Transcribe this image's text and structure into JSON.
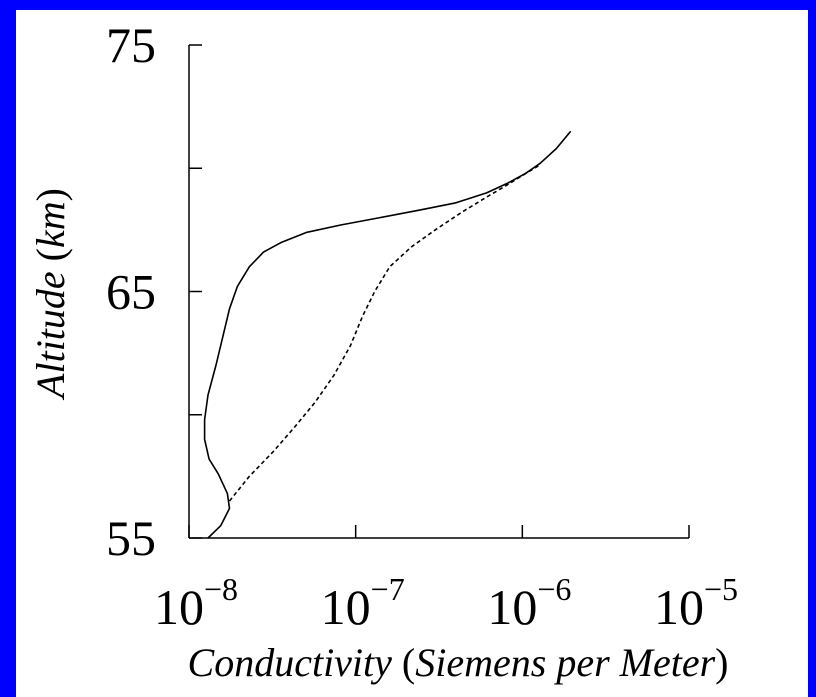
{
  "colors": {
    "frame": "#0000ff",
    "background": "#ffffff",
    "ink": "#000000"
  },
  "chart_data": {
    "type": "line",
    "title": "",
    "xlabel": {
      "italic_part": "Conductivity",
      "paren_part": "Siemens per Meter"
    },
    "ylabel": {
      "italic_part": "Altitude",
      "paren_part": "km"
    },
    "x_scale": "log",
    "xlim": [
      1e-08,
      1e-05
    ],
    "ylim": [
      55,
      75
    ],
    "x_ticks": [
      1e-08,
      1e-07,
      1e-06,
      1e-05
    ],
    "x_tick_labels": [
      {
        "base": "10",
        "exp": "−8"
      },
      {
        "base": "10",
        "exp": "−7"
      },
      {
        "base": "10",
        "exp": "−6"
      },
      {
        "base": "10",
        "exp": "−5"
      }
    ],
    "y_ticks": [
      55,
      60,
      65,
      70,
      75
    ],
    "y_tick_labels": [
      "55",
      "",
      "65",
      "",
      "75"
    ],
    "grid": false,
    "series": [
      {
        "style": "solid",
        "points": [
          [
            1.3e-08,
            55.0
          ],
          [
            1.55e-08,
            55.5
          ],
          [
            1.75e-08,
            56.2
          ],
          [
            1.7e-08,
            56.8
          ],
          [
            1.5e-08,
            57.6
          ],
          [
            1.32e-08,
            58.2
          ],
          [
            1.24e-08,
            59.0
          ],
          [
            1.24e-08,
            59.8
          ],
          [
            1.3e-08,
            60.8
          ],
          [
            1.45e-08,
            62.0
          ],
          [
            1.6e-08,
            63.2
          ],
          [
            1.75e-08,
            64.3
          ],
          [
            1.95e-08,
            65.2
          ],
          [
            2.3e-08,
            66.0
          ],
          [
            2.8e-08,
            66.6
          ],
          [
            3.6e-08,
            67.0
          ],
          [
            5.1e-08,
            67.4
          ],
          [
            8.2e-08,
            67.7
          ],
          [
            1.4e-07,
            68.0
          ],
          [
            2.4e-07,
            68.3
          ],
          [
            4e-07,
            68.6
          ],
          [
            6.1e-07,
            69.0
          ],
          [
            8.2e-07,
            69.4
          ],
          [
            1.05e-06,
            69.8
          ],
          [
            1.28e-06,
            70.2
          ],
          [
            1.6e-06,
            70.8
          ],
          [
            1.95e-06,
            71.5
          ]
        ]
      },
      {
        "style": "dashed",
        "points": [
          [
            1.75e-08,
            56.5
          ],
          [
            2.3e-08,
            57.5
          ],
          [
            3.2e-08,
            58.5
          ],
          [
            4.3e-08,
            59.5
          ],
          [
            5.7e-08,
            60.5
          ],
          [
            7.4e-08,
            61.6
          ],
          [
            9.3e-08,
            62.8
          ],
          [
            1.1e-07,
            64.0
          ],
          [
            1.3e-07,
            65.0
          ],
          [
            1.6e-07,
            66.0
          ],
          [
            2.15e-07,
            66.8
          ],
          [
            3e-07,
            67.5
          ],
          [
            4.3e-07,
            68.2
          ],
          [
            6e-07,
            68.8
          ],
          [
            8e-07,
            69.3
          ],
          [
            1e-06,
            69.7
          ],
          [
            1.25e-06,
            70.1
          ]
        ]
      }
    ]
  }
}
